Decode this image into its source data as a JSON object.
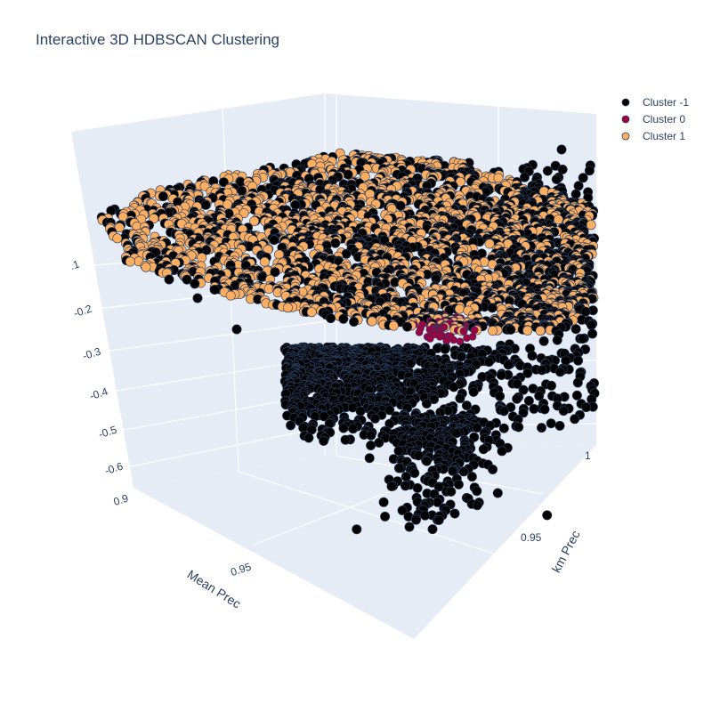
{
  "chart_data": {
    "type": "scatter",
    "title": "Interactive 3D HDBSCAN Clustering",
    "xlabel": "Mean Prec",
    "ylabel": "km Prec",
    "zlabel": "",
    "x_ticks": [
      "0.9",
      "0.95"
    ],
    "y_ticks": [
      "0.95",
      "1"
    ],
    "z_ticks": [
      ".1",
      "-0.2",
      "-0.3",
      "-0.4",
      "-0.5",
      "-0.6"
    ],
    "x_range": [
      0.9,
      1.0
    ],
    "y_range": [
      0.9,
      1.0
    ],
    "z_range": [
      -0.65,
      -0.05
    ],
    "legend_position": "top-right",
    "series": [
      {
        "name": "Cluster -1",
        "color": "#000000"
      },
      {
        "name": "Cluster 0",
        "color": "#9e0142"
      },
      {
        "name": "Cluster 1",
        "color": "#fdae61"
      }
    ]
  }
}
